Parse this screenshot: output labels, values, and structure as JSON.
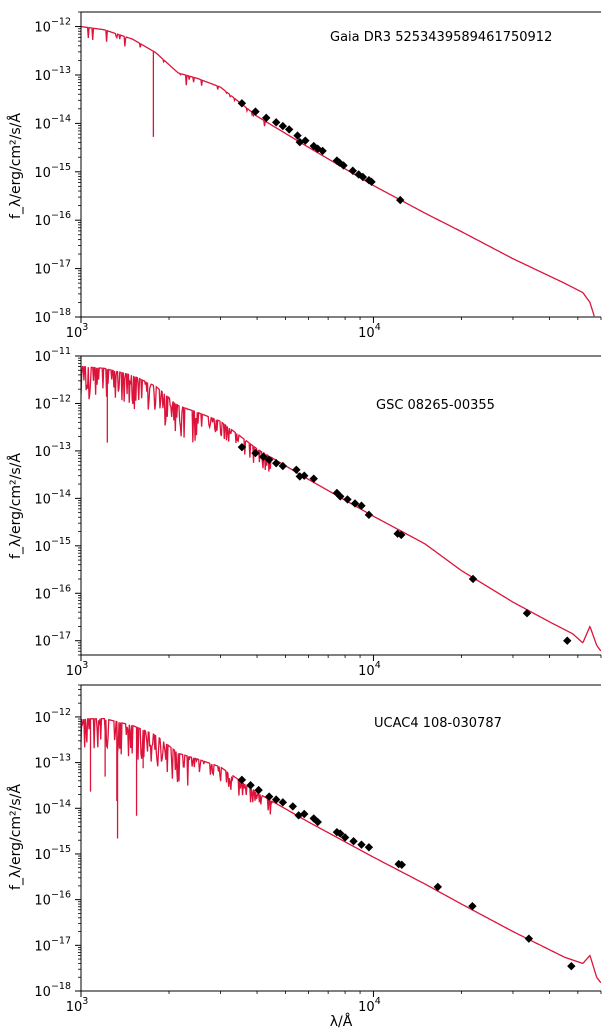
{
  "chart_data": [
    {
      "type": "line",
      "annotation": "Gaia DR3 5253439589461750912",
      "ylabel": "f_λ/erg/cm²/s/Å",
      "xlabel": "",
      "xscale": "log",
      "yscale": "log",
      "xlim": [
        1000,
        60000
      ],
      "ylim": [
        1e-18,
        2e-12
      ],
      "xticks": [
        {
          "base": "10",
          "exp": "3",
          "value": 1000
        },
        {
          "base": "10",
          "exp": "4",
          "value": 10000
        }
      ],
      "yticks": [
        {
          "base": "10",
          "exp": "−12",
          "value": 1e-12
        },
        {
          "base": "10",
          "exp": "−13",
          "value": 1e-13
        },
        {
          "base": "10",
          "exp": "−14",
          "value": 1e-14
        },
        {
          "base": "10",
          "exp": "−15",
          "value": 1e-15
        },
        {
          "base": "10",
          "exp": "−16",
          "value": 1e-16
        },
        {
          "base": "10",
          "exp": "−17",
          "value": 1e-17
        },
        {
          "base": "10",
          "exp": "−18",
          "value": 1e-18
        }
      ],
      "model_color": "#dc143c",
      "point_color": "#000000",
      "model_spectrum": [
        [
          1000,
          1e-12
        ],
        [
          1200,
          8.6e-13
        ],
        [
          1500,
          5.5e-13
        ],
        [
          1800,
          2.9e-13
        ],
        [
          2150,
          1.1e-13
        ],
        [
          2500,
          8.5e-14
        ],
        [
          3000,
          5.6e-14
        ],
        [
          4000,
          1.4e-14
        ],
        [
          6000,
          3.2e-15
        ],
        [
          10000,
          5.2e-16
        ],
        [
          15000,
          1.4e-16
        ],
        [
          20000,
          5.8e-17
        ],
        [
          30000,
          1.6e-17
        ],
        [
          45000,
          5e-18
        ],
        [
          52000,
          3.2e-18
        ],
        [
          55000,
          2e-18
        ],
        [
          57000,
          1e-18
        ]
      ],
      "photometry": [
        [
          3550,
          2.6e-14
        ],
        [
          3950,
          1.75e-14
        ],
        [
          4300,
          1.3e-14
        ],
        [
          4650,
          1.05e-14
        ],
        [
          4900,
          8.8e-15
        ],
        [
          5150,
          7.5e-15
        ],
        [
          5500,
          5.6e-15
        ],
        [
          5600,
          4.1e-15
        ],
        [
          5850,
          4.4e-15
        ],
        [
          6250,
          3.4e-15
        ],
        [
          6450,
          3e-15
        ],
        [
          6700,
          2.7e-15
        ],
        [
          7500,
          1.7e-15
        ],
        [
          7650,
          1.55e-15
        ],
        [
          7900,
          1.35e-15
        ],
        [
          8500,
          1.05e-15
        ],
        [
          8900,
          8.8e-16
        ],
        [
          9200,
          7.8e-16
        ],
        [
          9650,
          6.7e-16
        ],
        [
          9850,
          6.2e-16
        ],
        [
          12350,
          2.6e-16
        ]
      ]
    },
    {
      "type": "line",
      "annotation": "GSC 08265-00355",
      "ylabel": "f_λ/erg/cm²/s/Å",
      "xlabel": "",
      "xscale": "log",
      "yscale": "log",
      "xlim": [
        1000,
        60000
      ],
      "ylim": [
        5e-18,
        1e-11
      ],
      "xticks": [
        {
          "base": "10",
          "exp": "3",
          "value": 1000
        },
        {
          "base": "10",
          "exp": "4",
          "value": 10000
        }
      ],
      "yticks": [
        {
          "base": "10",
          "exp": "−11",
          "value": 1e-11
        },
        {
          "base": "10",
          "exp": "−12",
          "value": 1e-12
        },
        {
          "base": "10",
          "exp": "−13",
          "value": 1e-13
        },
        {
          "base": "10",
          "exp": "−14",
          "value": 1e-14
        },
        {
          "base": "10",
          "exp": "−15",
          "value": 1e-15
        },
        {
          "base": "10",
          "exp": "−16",
          "value": 1e-16
        },
        {
          "base": "10",
          "exp": "−17",
          "value": 1e-17
        }
      ],
      "model_color": "#dc143c",
      "point_color": "#000000",
      "model_spectrum": [
        [
          1000,
          6e-12
        ],
        [
          1200,
          5.5e-12
        ],
        [
          1500,
          3.9e-12
        ],
        [
          1800,
          2.3e-12
        ],
        [
          2150,
          9e-13
        ],
        [
          2500,
          6.5e-13
        ],
        [
          3000,
          4.2e-13
        ],
        [
          4000,
          1.1e-13
        ],
        [
          6000,
          2.5e-14
        ],
        [
          10000,
          4.2e-15
        ],
        [
          15000,
          1.1e-15
        ],
        [
          20000,
          3e-16
        ],
        [
          30000,
          6.5e-17
        ],
        [
          40000,
          2.5e-17
        ],
        [
          48000,
          1.4e-17
        ],
        [
          52000,
          9e-18
        ],
        [
          55000,
          2e-17
        ],
        [
          58000,
          8e-18
        ],
        [
          60000,
          6e-18
        ]
      ],
      "photometry": [
        [
          3550,
          1.2e-13
        ],
        [
          3950,
          9e-14
        ],
        [
          4200,
          7.5e-14
        ],
        [
          4400,
          6.5e-14
        ],
        [
          4650,
          5.5e-14
        ],
        [
          4900,
          4.8e-14
        ],
        [
          5450,
          4e-14
        ],
        [
          5600,
          2.9e-14
        ],
        [
          5800,
          3e-14
        ],
        [
          6250,
          2.6e-14
        ],
        [
          7500,
          1.3e-14
        ],
        [
          7700,
          1.1e-14
        ],
        [
          8150,
          9.5e-15
        ],
        [
          8650,
          7.8e-15
        ],
        [
          9100,
          7e-15
        ],
        [
          9650,
          4.5e-15
        ],
        [
          12100,
          1.8e-15
        ],
        [
          12450,
          1.7e-15
        ],
        [
          21900,
          2e-16
        ],
        [
          33500,
          3.8e-17
        ],
        [
          46000,
          1e-17
        ]
      ]
    },
    {
      "type": "line",
      "annotation": "UCAC4 108-030787",
      "ylabel": "f_λ/erg/cm²/s/Å",
      "xlabel": "λ/Å",
      "xscale": "log",
      "yscale": "log",
      "xlim": [
        1000,
        60000
      ],
      "ylim": [
        1e-18,
        5e-12
      ],
      "xticks": [
        {
          "base": "10",
          "exp": "3",
          "value": 1000
        },
        {
          "base": "10",
          "exp": "4",
          "value": 10000
        }
      ],
      "yticks": [
        {
          "base": "10",
          "exp": "−12",
          "value": 1e-12
        },
        {
          "base": "10",
          "exp": "−13",
          "value": 1e-13
        },
        {
          "base": "10",
          "exp": "−14",
          "value": 1e-14
        },
        {
          "base": "10",
          "exp": "−15",
          "value": 1e-15
        },
        {
          "base": "10",
          "exp": "−16",
          "value": 1e-16
        },
        {
          "base": "10",
          "exp": "−17",
          "value": 1e-17
        },
        {
          "base": "10",
          "exp": "−18",
          "value": 1e-18
        }
      ],
      "model_color": "#dc143c",
      "point_color": "#000000",
      "model_spectrum": [
        [
          1000,
          9e-13
        ],
        [
          1200,
          9.2e-13
        ],
        [
          1500,
          6.5e-13
        ],
        [
          1800,
          4e-13
        ],
        [
          2150,
          1.6e-13
        ],
        [
          2500,
          1.2e-13
        ],
        [
          3000,
          8e-14
        ],
        [
          4000,
          2.2e-14
        ],
        [
          6000,
          5e-15
        ],
        [
          10000,
          8.5e-16
        ],
        [
          15000,
          2.2e-16
        ],
        [
          20000,
          8e-17
        ],
        [
          30000,
          2e-17
        ],
        [
          45000,
          5.5e-18
        ],
        [
          52000,
          4e-18
        ],
        [
          55000,
          6e-18
        ],
        [
          58000,
          2e-18
        ],
        [
          60000,
          1.5e-18
        ]
      ],
      "photometry": [
        [
          3550,
          4.2e-14
        ],
        [
          3800,
          3.2e-14
        ],
        [
          4050,
          2.5e-14
        ],
        [
          4400,
          1.8e-14
        ],
        [
          4650,
          1.55e-14
        ],
        [
          4900,
          1.35e-14
        ],
        [
          5300,
          1.1e-14
        ],
        [
          5550,
          7e-15
        ],
        [
          5800,
          7.5e-15
        ],
        [
          6250,
          6e-15
        ],
        [
          6450,
          5e-15
        ],
        [
          7500,
          3e-15
        ],
        [
          7700,
          2.8e-15
        ],
        [
          8000,
          2.3e-15
        ],
        [
          8550,
          1.9e-15
        ],
        [
          9100,
          1.6e-15
        ],
        [
          9650,
          1.4e-15
        ],
        [
          12200,
          6e-16
        ],
        [
          12500,
          5.8e-16
        ],
        [
          16600,
          1.9e-16
        ],
        [
          21800,
          7.2e-17
        ],
        [
          34000,
          1.4e-17
        ],
        [
          47500,
          3.5e-18
        ]
      ]
    }
  ]
}
